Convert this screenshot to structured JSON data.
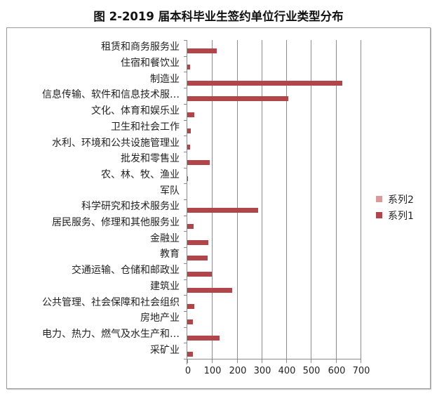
{
  "title": "图 2-2019 届本科毕业生签约单位行业类型分布",
  "chart_data": {
    "type": "bar",
    "orientation": "horizontal",
    "title": "图 2-2019 届本科毕业生签约单位行业类型分布",
    "xlabel": "",
    "ylabel": "",
    "xlim": [
      0,
      700
    ],
    "x_ticks": [
      "0",
      "100",
      "200",
      "300",
      "400",
      "500",
      "600",
      "700"
    ],
    "grid": "vertical gridlines on",
    "legend_position": "right",
    "categories": [
      "租赁和商务服务业",
      "住宿和餐饮业",
      "制造业",
      "信息传输、软件和信息技术服…",
      "文化、体育和娱乐业",
      "卫生和社会工作",
      "水利、环境和公共设施管理业",
      "批发和零售业",
      "农、林、牧、渔业",
      "军队",
      "科学研究和技术服务业",
      "居民服务、修理和其他服务业",
      "金融业",
      "教育",
      "交通运输、仓储和邮政业",
      "建筑业",
      "公共管理、社会保障和社会组织",
      "房地产业",
      "电力、热力、燃气及水生产和…",
      "采矿业"
    ],
    "series": [
      {
        "name": "系列1",
        "color": "#b0454a",
        "values": [
          119,
          12,
          626,
          408,
          28,
          15,
          10,
          90,
          2,
          0,
          287,
          25,
          86,
          83,
          98,
          181,
          28,
          23,
          129,
          23
        ]
      },
      {
        "name": "系列2",
        "color": "#d99a9c",
        "values": [
          0,
          0,
          0,
          0,
          0,
          0,
          0,
          0,
          0,
          0,
          0,
          0,
          0,
          0,
          0,
          0,
          0,
          0,
          0,
          0
        ]
      }
    ]
  },
  "legend": {
    "items": [
      {
        "label": "系列2",
        "color": "#d99a9c"
      },
      {
        "label": "系列1",
        "color": "#b0454a"
      }
    ]
  }
}
